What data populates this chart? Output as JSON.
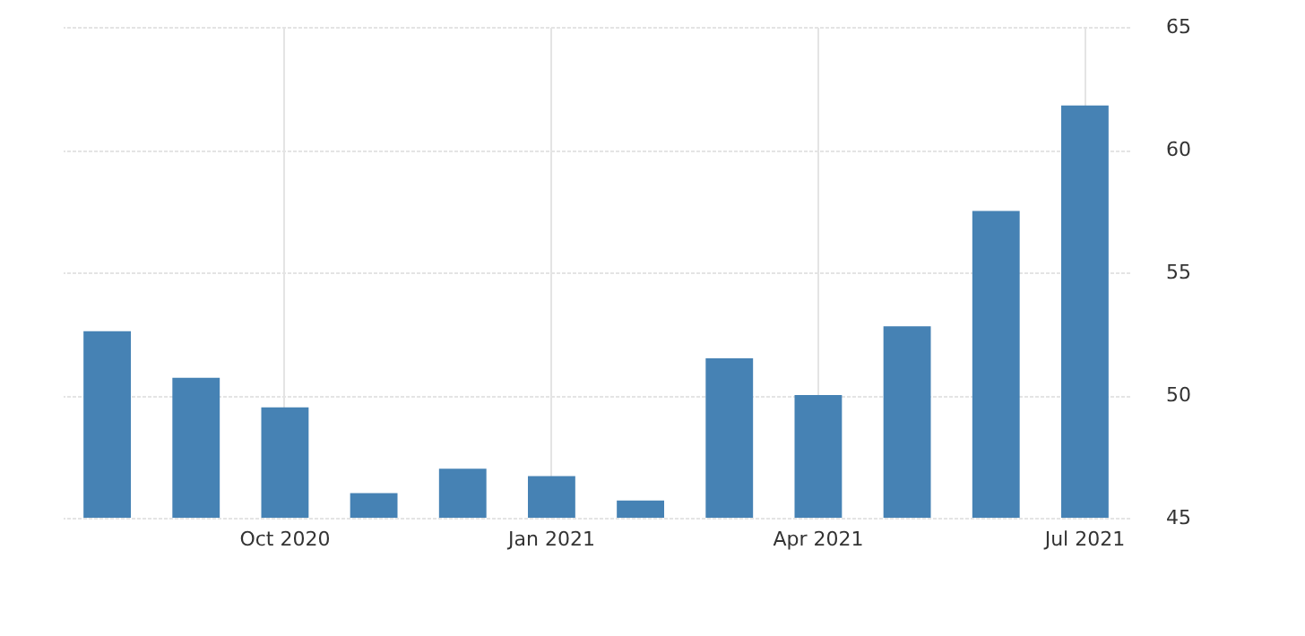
{
  "chart_data": {
    "type": "bar",
    "categories": [
      null,
      null,
      "Oct 2020",
      null,
      null,
      "Jan 2021",
      null,
      null,
      "Apr 2021",
      null,
      null,
      "Jul 2021"
    ],
    "series": [
      {
        "color": "#4682b4",
        "values": [
          52.6,
          50.7,
          49.5,
          46.0,
          47.0,
          46.7,
          45.7,
          51.5,
          50.0,
          52.8,
          57.5,
          61.8
        ]
      }
    ],
    "ylim": [
      45,
      65
    ],
    "yticks": [
      45,
      50,
      55,
      60,
      65
    ],
    "grid": true
  }
}
